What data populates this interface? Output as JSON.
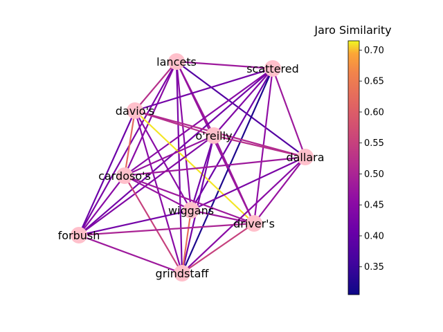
{
  "chart_data": {
    "type": "network",
    "colorbar": {
      "title": "Jaro Similarity",
      "range": [
        0.305,
        0.715
      ],
      "ticks": [
        "0.35",
        "0.40",
        "0.45",
        "0.50",
        "0.55",
        "0.60",
        "0.65",
        "0.70"
      ],
      "colormap": "plasma"
    },
    "nodes": [
      {
        "id": "lancets",
        "label": "lancets"
      },
      {
        "id": "scattered",
        "label": "scattered"
      },
      {
        "id": "davids",
        "label": "davio's"
      },
      {
        "id": "oreilly",
        "label": "o'reilly"
      },
      {
        "id": "dallara",
        "label": "dallara"
      },
      {
        "id": "cardosos",
        "label": "cardoso's"
      },
      {
        "id": "wiggans",
        "label": "wiggans"
      },
      {
        "id": "drivers",
        "label": "driver's"
      },
      {
        "id": "forbush",
        "label": "forbush"
      },
      {
        "id": "grindstaff",
        "label": "grindstaff"
      }
    ],
    "edges": [
      {
        "source": "lancets",
        "target": "scattered",
        "value": 0.48
      },
      {
        "source": "lancets",
        "target": "davids",
        "value": 0.52
      },
      {
        "source": "lancets",
        "target": "oreilly",
        "value": 0.48
      },
      {
        "source": "lancets",
        "target": "dallara",
        "value": 0.38
      },
      {
        "source": "lancets",
        "target": "cardosos",
        "value": 0.45
      },
      {
        "source": "lancets",
        "target": "wiggans",
        "value": 0.45
      },
      {
        "source": "lancets",
        "target": "drivers",
        "value": 0.47
      },
      {
        "source": "lancets",
        "target": "forbush",
        "value": 0.43
      },
      {
        "source": "lancets",
        "target": "grindstaff",
        "value": 0.43
      },
      {
        "source": "scattered",
        "target": "davids",
        "value": 0.42
      },
      {
        "source": "scattered",
        "target": "oreilly",
        "value": 0.44
      },
      {
        "source": "scattered",
        "target": "dallara",
        "value": 0.48
      },
      {
        "source": "scattered",
        "target": "cardosos",
        "value": 0.45
      },
      {
        "source": "scattered",
        "target": "wiggans",
        "value": 0.41
      },
      {
        "source": "scattered",
        "target": "drivers",
        "value": 0.46
      },
      {
        "source": "scattered",
        "target": "forbush",
        "value": 0.42
      },
      {
        "source": "scattered",
        "target": "grindstaff",
        "value": 0.32
      },
      {
        "source": "davids",
        "target": "oreilly",
        "value": 0.52
      },
      {
        "source": "davids",
        "target": "dallara",
        "value": 0.51
      },
      {
        "source": "davids",
        "target": "cardosos",
        "value": 0.62
      },
      {
        "source": "davids",
        "target": "wiggans",
        "value": 0.45
      },
      {
        "source": "davids",
        "target": "drivers",
        "value": 0.71
      },
      {
        "source": "davids",
        "target": "forbush",
        "value": 0.41
      },
      {
        "source": "davids",
        "target": "grindstaff",
        "value": 0.45
      },
      {
        "source": "oreilly",
        "target": "dallara",
        "value": 0.52
      },
      {
        "source": "oreilly",
        "target": "cardosos",
        "value": 0.47
      },
      {
        "source": "oreilly",
        "target": "wiggans",
        "value": 0.42
      },
      {
        "source": "oreilly",
        "target": "drivers",
        "value": 0.48
      },
      {
        "source": "oreilly",
        "target": "forbush",
        "value": 0.44
      },
      {
        "source": "oreilly",
        "target": "grindstaff",
        "value": 0.42
      },
      {
        "source": "dallara",
        "target": "cardosos",
        "value": 0.48
      },
      {
        "source": "dallara",
        "target": "wiggans",
        "value": 0.43
      },
      {
        "source": "dallara",
        "target": "drivers",
        "value": 0.47
      },
      {
        "source": "dallara",
        "target": "grindstaff",
        "value": 0.45
      },
      {
        "source": "cardosos",
        "target": "wiggans",
        "value": 0.47
      },
      {
        "source": "cardosos",
        "target": "drivers",
        "value": 0.48
      },
      {
        "source": "cardosos",
        "target": "forbush",
        "value": 0.45
      },
      {
        "source": "cardosos",
        "target": "grindstaff",
        "value": 0.55
      },
      {
        "source": "wiggans",
        "target": "drivers",
        "value": 0.48
      },
      {
        "source": "wiggans",
        "target": "forbush",
        "value": 0.42
      },
      {
        "source": "wiggans",
        "target": "grindstaff",
        "value": 0.63
      },
      {
        "source": "drivers",
        "target": "forbush",
        "value": 0.5
      },
      {
        "source": "drivers",
        "target": "grindstaff",
        "value": 0.55
      },
      {
        "source": "forbush",
        "target": "grindstaff",
        "value": 0.48
      }
    ]
  }
}
